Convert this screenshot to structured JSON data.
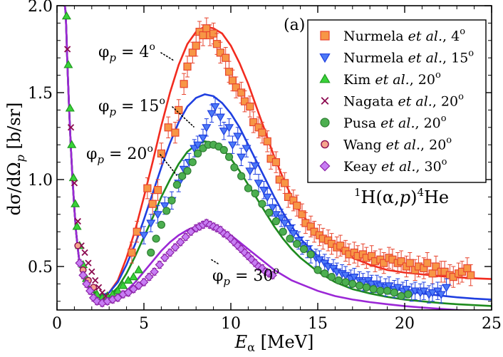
{
  "chart_data": {
    "type": "scatter",
    "panel_label": "(a)",
    "reaction_label": {
      "prefix_sup": "1",
      "a": "H(",
      "b": "α",
      "c": ",",
      "d": "p",
      "e": ")",
      "suffix_sup": "4",
      "f": "He"
    },
    "xlabel": {
      "main": "E",
      "sub": "α",
      "unit": " [MeV]"
    },
    "ylabel": {
      "main": "dσ/dΩ",
      "sub": "p",
      "unit": " [b/sr]"
    },
    "xlim": [
      0,
      25
    ],
    "ylim": [
      0.25,
      2.0
    ],
    "xticks": [
      0,
      5,
      10,
      15,
      20,
      25
    ],
    "yticks": [
      0.5,
      1.0,
      1.5,
      2.0
    ],
    "ytick_labels": [
      "0.5",
      "1.0",
      "1.5",
      "2.0"
    ],
    "grid": false,
    "legend_position": "top-right",
    "legend": [
      {
        "author": "Nurmela",
        "etal": "et al.",
        "angle": "4",
        "marker": "square",
        "color": "#F79646",
        "edge": "#E8442E"
      },
      {
        "author": "Nurmela",
        "etal": "et al.",
        "angle": "15",
        "marker": "triangle-down",
        "color": "#4D79F7",
        "edge": "#1F3FE0"
      },
      {
        "author": "Kim",
        "etal": "et al.",
        "angle": "20",
        "marker": "triangle-up",
        "color": "#39D239",
        "edge": "#1E9A1E"
      },
      {
        "author": "Nagata",
        "etal": "et al.",
        "angle": "20",
        "marker": "x",
        "color": "#8B0A50",
        "edge": "#8B0A50"
      },
      {
        "author": "Pusa",
        "etal": "et al.",
        "angle": "20",
        "marker": "circle",
        "color": "#4CAF50",
        "edge": "#2E7D32"
      },
      {
        "author": "Wang",
        "etal": "et al.",
        "angle": "20",
        "marker": "circle-small",
        "color": "#F5A58C",
        "edge": "#8B0A50"
      },
      {
        "author": "Keay",
        "etal": "et al.",
        "angle": "30",
        "marker": "diamond",
        "color": "#C77DF3",
        "edge": "#8E24AA"
      }
    ],
    "curve_labels": [
      {
        "phi": "φ",
        "sub": "p",
        "eq": " = 4",
        "deg": "o",
        "at": [
          4.0,
          1.72
        ]
      },
      {
        "phi": "φ",
        "sub": "p",
        "eq": " = 15",
        "deg": "o",
        "at": [
          6.4,
          1.42
        ]
      },
      {
        "phi": "φ",
        "sub": "p",
        "eq": " = 20",
        "deg": "o",
        "at": [
          6.8,
          1.08
        ]
      },
      {
        "phi": "φ",
        "sub": "p",
        "eq": " = 30",
        "deg": "o",
        "at": [
          8.6,
          0.63
        ]
      }
    ],
    "curve_label_text": [
      "φp = 4o",
      "φp = 15o",
      "φp = 20o",
      "φp = 30o"
    ],
    "curves": [
      {
        "angle": "4",
        "color": "#F22B1F",
        "x": [
          1.3,
          1.6,
          2.0,
          2.5,
          3.0,
          3.5,
          4.0,
          4.5,
          5.0,
          5.5,
          6.0,
          6.5,
          7.0,
          7.5,
          8.0,
          8.5,
          9.0,
          9.5,
          10.0,
          10.5,
          11.0,
          11.5,
          12.0,
          12.5,
          13.0,
          13.5,
          14.0,
          15.0,
          16.0,
          17.0,
          18.0,
          19.0,
          20.0,
          21.0,
          22.0,
          23.0,
          24.0,
          25.0
        ],
        "y": [
          0.52,
          0.42,
          0.36,
          0.33,
          0.35,
          0.42,
          0.55,
          0.71,
          0.9,
          1.1,
          1.31,
          1.5,
          1.66,
          1.78,
          1.85,
          1.88,
          1.87,
          1.84,
          1.77,
          1.67,
          1.55,
          1.41,
          1.27,
          1.13,
          1.01,
          0.9,
          0.81,
          0.69,
          0.61,
          0.55,
          0.51,
          0.48,
          0.465,
          0.455,
          0.445,
          0.438,
          0.432,
          0.428
        ]
      },
      {
        "angle": "15",
        "color": "#1F3FE0",
        "x": [
          1.3,
          1.6,
          2.0,
          2.5,
          3.0,
          3.5,
          4.0,
          4.5,
          5.0,
          5.5,
          6.0,
          6.5,
          7.0,
          7.5,
          8.0,
          8.5,
          9.0,
          9.5,
          10.0,
          10.5,
          11.0,
          11.5,
          12.0,
          12.5,
          13.0,
          13.5,
          14.0,
          15.0,
          16.0,
          17.0,
          18.0,
          19.0,
          20.0,
          21.0,
          22.0,
          23.0,
          24.0,
          25.0
        ],
        "y": [
          0.52,
          0.42,
          0.36,
          0.33,
          0.35,
          0.41,
          0.51,
          0.63,
          0.77,
          0.92,
          1.07,
          1.21,
          1.33,
          1.42,
          1.47,
          1.49,
          1.48,
          1.44,
          1.38,
          1.3,
          1.2,
          1.1,
          1.0,
          0.9,
          0.81,
          0.73,
          0.66,
          0.56,
          0.49,
          0.44,
          0.405,
          0.38,
          0.36,
          0.345,
          0.333,
          0.323,
          0.315,
          0.31
        ]
      },
      {
        "angle": "20",
        "color": "#1E8B1E",
        "x": [
          1.3,
          1.6,
          2.0,
          2.5,
          3.0,
          3.5,
          4.0,
          4.5,
          5.0,
          5.5,
          6.0,
          6.5,
          7.0,
          7.5,
          8.0,
          8.5,
          9.0,
          9.5,
          10.0,
          10.5,
          11.0,
          11.5,
          12.0,
          12.5,
          13.0,
          13.5,
          14.0,
          15.0,
          16.0,
          17.0,
          18.0,
          19.0,
          20.0,
          21.0,
          22.0,
          23.0,
          24.0,
          25.0
        ],
        "y": [
          0.52,
          0.42,
          0.36,
          0.32,
          0.33,
          0.38,
          0.46,
          0.56,
          0.67,
          0.78,
          0.9,
          1.0,
          1.09,
          1.16,
          1.2,
          1.22,
          1.21,
          1.18,
          1.12,
          1.05,
          0.97,
          0.89,
          0.81,
          0.73,
          0.66,
          0.6,
          0.55,
          0.47,
          0.41,
          0.37,
          0.345,
          0.325,
          0.31,
          0.3,
          0.29,
          0.283,
          0.278,
          0.273
        ]
      },
      {
        "angle": "30",
        "color": "#9B27D6",
        "x": [
          1.3,
          1.6,
          2.0,
          2.5,
          3.0,
          3.5,
          4.0,
          4.5,
          5.0,
          5.5,
          6.0,
          6.5,
          7.0,
          7.5,
          8.0,
          8.5,
          9.0,
          9.5,
          10.0,
          10.5,
          11.0,
          11.5,
          12.0,
          12.5,
          13.0,
          13.5,
          14.0,
          15.0,
          16.0,
          17.0,
          18.0,
          19.0,
          20.0,
          21.0,
          22.0,
          23.0,
          24.0,
          25.0
        ],
        "y": [
          0.52,
          0.41,
          0.34,
          0.3,
          0.3,
          0.32,
          0.36,
          0.41,
          0.47,
          0.53,
          0.59,
          0.64,
          0.68,
          0.71,
          0.73,
          0.74,
          0.73,
          0.71,
          0.68,
          0.64,
          0.6,
          0.56,
          0.52,
          0.48,
          0.45,
          0.42,
          0.4,
          0.36,
          0.33,
          0.31,
          0.295,
          0.283,
          0.272,
          0.264,
          0.257,
          0.25,
          0.245,
          0.24
        ]
      }
    ],
    "low_energy_rise": {
      "x": [
        0.45,
        0.5,
        0.55,
        0.6,
        0.7,
        0.8,
        0.9,
        1.0,
        1.1,
        1.2,
        1.3
      ],
      "y": [
        2.0,
        1.96,
        1.82,
        1.66,
        1.4,
        1.18,
        0.99,
        0.83,
        0.7,
        0.6,
        0.52
      ]
    },
    "series": [
      {
        "name": "Nurmela 4",
        "marker": "square",
        "color": "#F79646",
        "edge": "#E8442E",
        "x": [
          4.3,
          4.6,
          5.2,
          5.5,
          5.8,
          6.0,
          6.4,
          6.8,
          7.0,
          7.3,
          7.5,
          7.8,
          8.0,
          8.2,
          8.4,
          8.6,
          8.8,
          9.0,
          9.2,
          9.4,
          9.7,
          9.9,
          10.1,
          10.3,
          10.6,
          10.8,
          11.1,
          11.3,
          11.6,
          11.8,
          12.1,
          12.3,
          12.6,
          12.8,
          13.1,
          13.3,
          13.6,
          13.8,
          14.1,
          14.3,
          14.6,
          14.8,
          15.1,
          15.3,
          15.6,
          15.8,
          16.1,
          16.3,
          16.6,
          16.8,
          17.1,
          17.3,
          17.6,
          17.8,
          18.1,
          18.3,
          18.6,
          18.8,
          19.1,
          19.3,
          19.6,
          19.8,
          20.1,
          20.3,
          20.6,
          20.8,
          21.1,
          21.3,
          21.6,
          21.8,
          22.1,
          22.3,
          22.6,
          22.8,
          23.1,
          23.3,
          23.6,
          23.8
        ],
        "y": [
          0.58,
          0.7,
          0.95,
          0.86,
          0.94,
          1.15,
          1.3,
          1.27,
          1.4,
          1.55,
          1.65,
          1.73,
          1.77,
          1.85,
          1.83,
          1.87,
          1.83,
          1.84,
          1.78,
          1.73,
          1.7,
          1.62,
          1.57,
          1.53,
          1.5,
          1.45,
          1.42,
          1.33,
          1.3,
          1.27,
          1.22,
          1.12,
          1.1,
          1.0,
          0.98,
          0.9,
          0.88,
          0.85,
          0.8,
          0.75,
          0.73,
          0.7,
          0.68,
          0.66,
          0.65,
          0.63,
          0.61,
          0.62,
          0.59,
          0.57,
          0.58,
          0.56,
          0.57,
          0.55,
          0.56,
          0.53,
          0.54,
          0.52,
          0.55,
          0.54,
          0.52,
          0.53,
          0.5,
          0.52,
          0.48,
          0.5,
          0.49,
          0.52,
          0.46,
          0.5,
          0.47,
          0.47,
          0.45,
          0.44,
          0.46,
          0.47,
          0.49,
          0.45
        ]
      },
      {
        "name": "Nurmela 15",
        "marker": "triangle-down",
        "color": "#4D79F7",
        "edge": "#1F3FE0",
        "x": [
          5.0,
          5.4,
          5.8,
          6.2,
          6.6,
          7.0,
          7.3,
          7.6,
          7.9,
          8.1,
          8.4,
          8.6,
          8.9,
          9.1,
          9.4,
          9.6,
          9.9,
          10.1,
          10.4,
          10.6,
          10.9,
          11.1,
          11.4,
          11.6,
          11.9,
          12.1,
          12.4,
          12.6,
          12.9,
          13.1,
          13.4,
          13.6,
          13.9,
          14.1,
          14.4,
          14.6,
          14.9,
          15.1,
          15.4,
          15.6,
          15.9,
          16.1,
          16.4,
          16.6,
          16.9,
          17.1,
          17.4,
          17.6,
          17.9,
          18.1,
          18.4,
          18.6,
          18.9,
          19.1,
          19.4,
          19.6,
          19.9,
          20.1,
          20.4,
          20.6,
          20.9,
          21.1,
          21.4,
          21.6,
          21.9,
          22.1,
          22.4
        ],
        "y": [
          0.68,
          0.75,
          0.8,
          0.85,
          0.88,
          0.98,
          1.06,
          1.1,
          1.18,
          1.2,
          1.24,
          1.3,
          1.38,
          1.42,
          1.36,
          1.28,
          1.3,
          1.2,
          1.25,
          1.13,
          1.18,
          1.05,
          1.08,
          0.98,
          0.94,
          0.9,
          0.84,
          0.8,
          0.78,
          0.75,
          0.72,
          0.69,
          0.65,
          0.62,
          0.6,
          0.57,
          0.55,
          0.54,
          0.52,
          0.5,
          0.49,
          0.47,
          0.46,
          0.45,
          0.43,
          0.44,
          0.42,
          0.41,
          0.42,
          0.4,
          0.4,
          0.39,
          0.38,
          0.39,
          0.37,
          0.38,
          0.36,
          0.37,
          0.35,
          0.36,
          0.35,
          0.36,
          0.34,
          0.35,
          0.36,
          0.34,
          0.38
        ]
      },
      {
        "name": "Kim 20",
        "marker": "triangle-up",
        "color": "#39D239",
        "edge": "#1E9A1E",
        "x": [
          0.55,
          0.65,
          0.75,
          0.85,
          0.95,
          1.05,
          1.15,
          1.3,
          1.5,
          1.7,
          2.0,
          2.3,
          2.6,
          2.9,
          3.2,
          3.5,
          3.8,
          4.1,
          4.4,
          4.7
        ],
        "y": [
          1.94,
          1.66,
          1.41,
          1.2,
          1.01,
          0.86,
          0.73,
          0.62,
          0.51,
          0.43,
          0.37,
          0.34,
          0.32,
          0.33,
          0.34,
          0.36,
          0.39,
          0.42,
          0.44,
          0.48
        ]
      },
      {
        "name": "Nagata 20",
        "marker": "x",
        "color": "#8B0A50",
        "edge": "#8B0A50",
        "x": [
          0.6,
          0.8,
          1.0,
          1.2,
          1.4,
          1.6,
          1.8,
          2.0,
          2.2,
          2.4,
          2.6,
          2.8
        ],
        "y": [
          1.75,
          1.3,
          0.98,
          0.76,
          0.62,
          0.58,
          0.52,
          0.47,
          0.42,
          0.38,
          0.35,
          0.33
        ]
      },
      {
        "name": "Pusa 20",
        "marker": "circle",
        "color": "#4CAF50",
        "edge": "#2E7D32",
        "x": [
          5.4,
          5.7,
          6.0,
          6.3,
          6.6,
          6.9,
          7.2,
          7.5,
          7.8,
          8.1,
          8.4,
          8.7,
          9.0,
          9.3,
          9.6,
          9.9,
          10.2,
          10.6,
          11.0,
          11.4,
          11.8,
          12.2,
          12.6,
          13.0,
          13.4,
          13.8,
          14.2,
          14.6,
          15.0,
          15.4,
          15.8,
          16.2,
          16.6,
          17.0,
          17.4,
          17.8,
          18.2,
          18.6,
          19.0,
          19.4,
          19.8,
          20.2
        ],
        "y": [
          0.58,
          0.66,
          0.74,
          0.82,
          0.88,
          0.97,
          1.02,
          1.05,
          1.1,
          1.15,
          1.18,
          1.2,
          1.2,
          1.19,
          1.17,
          1.13,
          1.07,
          1.02,
          0.95,
          0.92,
          0.86,
          0.81,
          0.76,
          0.7,
          0.66,
          0.63,
          0.6,
          0.57,
          0.48,
          0.46,
          0.44,
          0.42,
          0.41,
          0.4,
          0.39,
          0.38,
          0.37,
          0.36,
          0.36,
          0.35,
          0.33,
          0.34
        ]
      },
      {
        "name": "Wang 20",
        "marker": "circle-small",
        "color": "#F5A58C",
        "edge": "#8B0A50",
        "x": [
          1.2,
          1.5,
          1.8,
          2.1
        ],
        "y": [
          0.62,
          0.48,
          0.42,
          0.38
        ]
      },
      {
        "name": "Keay 30",
        "marker": "diamond",
        "color": "#C77DF3",
        "edge": "#8E24AA",
        "x": [
          1.3,
          1.5,
          1.7,
          1.9,
          2.1,
          2.3,
          2.6,
          2.9,
          3.2,
          3.5,
          3.8,
          4.1,
          4.4,
          4.7,
          5.0,
          5.3,
          5.6,
          5.9,
          6.2,
          6.5,
          6.8,
          7.1,
          7.4,
          7.7,
          8.0,
          8.2,
          8.4,
          8.6,
          8.8,
          9.0,
          9.2,
          9.4,
          9.6,
          9.8,
          10.0,
          10.2,
          10.4,
          10.6,
          10.8,
          11.0,
          11.2,
          11.4,
          11.6,
          11.8,
          12.0,
          12.2,
          12.4
        ],
        "y": [
          0.52,
          0.45,
          0.4,
          0.36,
          0.32,
          0.3,
          0.29,
          0.3,
          0.31,
          0.32,
          0.34,
          0.35,
          0.37,
          0.39,
          0.41,
          0.44,
          0.47,
          0.51,
          0.55,
          0.58,
          0.61,
          0.64,
          0.67,
          0.7,
          0.72,
          0.73,
          0.74,
          0.75,
          0.74,
          0.73,
          0.72,
          0.71,
          0.69,
          0.68,
          0.66,
          0.64,
          0.62,
          0.6,
          0.58,
          0.56,
          0.54,
          0.52,
          0.5,
          0.49,
          0.47,
          0.46,
          0.45
        ]
      }
    ]
  }
}
